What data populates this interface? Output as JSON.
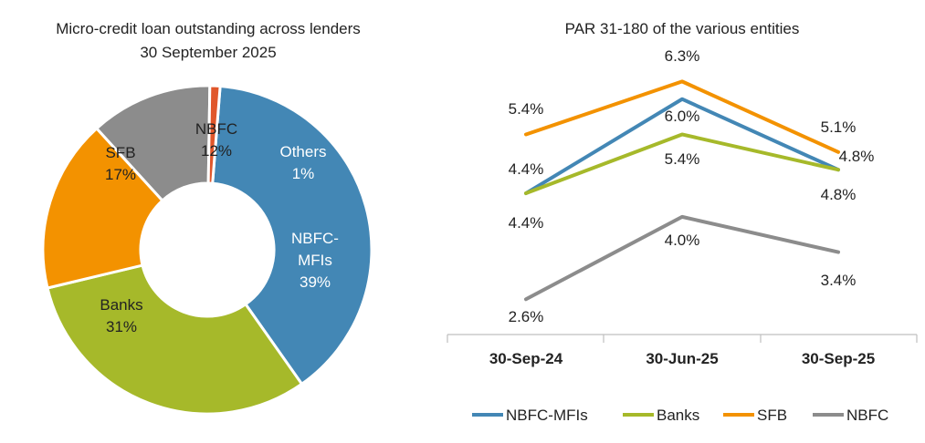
{
  "chart_data": [
    {
      "type": "pie",
      "variant": "donut",
      "title": "Micro-credit loan outstanding across lenders",
      "subtitle": "30 September 2025",
      "unit": "%",
      "slices": [
        {
          "name": "NBFC-MFIs",
          "value": 39,
          "label_lines": [
            "NBFC-",
            "MFIs",
            "39%"
          ],
          "color": "#4387b5",
          "label_color": "#ffffff"
        },
        {
          "name": "Banks",
          "value": 31,
          "label_lines": [
            "Banks",
            "31%"
          ],
          "color": "#a6b92a",
          "label_color": "#222222"
        },
        {
          "name": "SFB",
          "value": 17,
          "label_lines": [
            "SFB",
            "17%"
          ],
          "color": "#f39200",
          "label_color": "#222222"
        },
        {
          "name": "NBFC",
          "value": 12,
          "label_lines": [
            "NBFC",
            "12%"
          ],
          "color": "#8c8c8c",
          "label_color": "#222222"
        },
        {
          "name": "Others",
          "value": 1,
          "label_lines": [
            "Others",
            "1%"
          ],
          "color": "#e0572b",
          "label_color": "#ffffff"
        }
      ]
    },
    {
      "type": "line",
      "title": "PAR 31-180 of the various entities",
      "unit": "%",
      "categories": [
        "30-Sep-24",
        "30-Jun-25",
        "30-Sep-25"
      ],
      "ylim": [
        2.0,
        6.6
      ],
      "grid": false,
      "legend_position": "bottom",
      "series": [
        {
          "name": "NBFC-MFIs",
          "color": "#4387b5",
          "values": [
            4.4,
            6.0,
            4.8
          ],
          "labels": [
            "4.4%",
            "6.0%",
            "4.8%"
          ]
        },
        {
          "name": "Banks",
          "color": "#a6b92a",
          "values": [
            4.4,
            5.4,
            4.8
          ],
          "labels": [
            "4.4%",
            "5.4%",
            "4.8%"
          ]
        },
        {
          "name": "SFB",
          "color": "#f39200",
          "values": [
            5.4,
            6.3,
            5.1
          ],
          "labels": [
            "5.4%",
            "6.3%",
            "5.1%"
          ]
        },
        {
          "name": "NBFC",
          "color": "#8c8c8c",
          "values": [
            2.6,
            4.0,
            3.4
          ],
          "labels": [
            "2.6%",
            "4.0%",
            "3.4%"
          ]
        }
      ]
    }
  ]
}
